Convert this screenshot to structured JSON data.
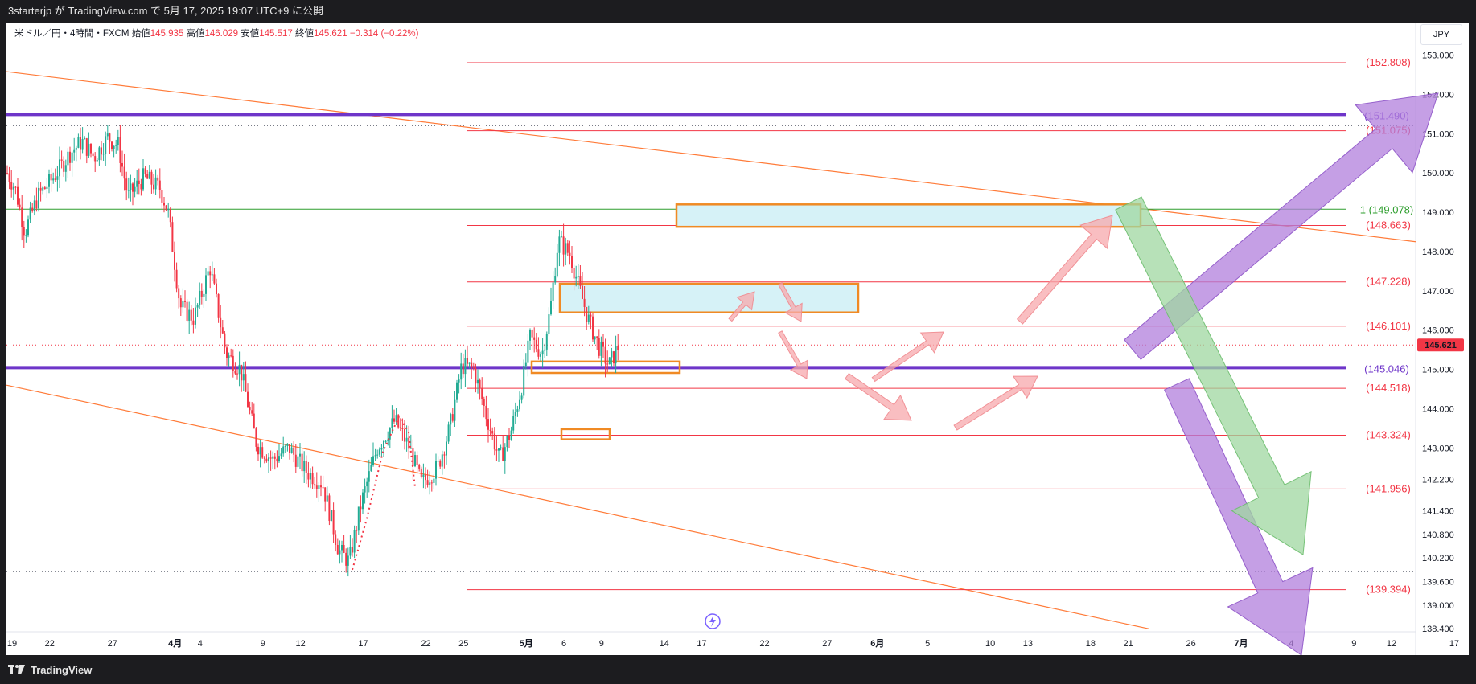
{
  "header": {
    "title": "3starterjp が TradingView.com で 5月 17, 2025 19:07 UTC+9 に公開"
  },
  "legend": {
    "symbol": "米ドル／円・4時間・FXCM",
    "open_label": "始値",
    "open": "145.935",
    "high_label": "高値",
    "high": "146.029",
    "low_label": "安値",
    "low": "145.517",
    "close_label": "終値",
    "close": "145.621",
    "change": "−0.314 (−0.22%)"
  },
  "currency_button": "JPY",
  "footer": {
    "brand": "TradingView",
    "logo_icon": "tradingview-logo-icon"
  },
  "colors": {
    "red_level": "#f23645",
    "purple_level": "#6e35c9",
    "green_level": "#2e9e2e",
    "trendline": "#ff7b39",
    "zone_fill": "#d6f2f7",
    "zone_border": "#f08a24",
    "up_candle": "#22ab94",
    "down_candle": "#f23645",
    "pink_arrow": "#f7a8ac",
    "purple_arrow": "#b27fdc",
    "green_arrow": "#9fd7a0"
  },
  "chart_data": {
    "type": "candlestick",
    "symbol": "USDJPY",
    "timeframe": "4h",
    "ylim": [
      138.2,
      153.4
    ],
    "y_ticks": [
      "153.000",
      "152.000",
      "151.000",
      "150.000",
      "149.000",
      "148.000",
      "147.000",
      "146.000",
      "145.000",
      "144.000",
      "143.000",
      "142.200",
      "141.400",
      "140.800",
      "140.200",
      "139.600",
      "139.000",
      "138.400"
    ],
    "x_ticks": [
      "19",
      "22",
      "27",
      "4月",
      "4",
      "9",
      "12",
      "17",
      "22",
      "25",
      "5月",
      "6",
      "9",
      "14",
      "17",
      "22",
      "27",
      "6月",
      "5",
      "10",
      "13",
      "18",
      "21",
      "26",
      "7月",
      "4",
      "9",
      "12",
      "17"
    ],
    "last_price": "145.621",
    "levels": [
      {
        "label": "(152.808)",
        "value": 152.808,
        "style": "red"
      },
      {
        "label": "(151.490)",
        "value": 151.49,
        "style": "purple"
      },
      {
        "label": "(151.075)",
        "value": 151.075,
        "style": "red"
      },
      {
        "label": "1 (149.078)",
        "value": 149.078,
        "style": "green"
      },
      {
        "label": "(148.663)",
        "value": 148.663,
        "style": "red"
      },
      {
        "label": "(147.228)",
        "value": 147.228,
        "style": "red"
      },
      {
        "label": "(146.101)",
        "value": 146.101,
        "style": "red"
      },
      {
        "label": "(145.046)",
        "value": 145.046,
        "style": "purple"
      },
      {
        "label": "(144.518)",
        "value": 144.518,
        "style": "red"
      },
      {
        "label": "(143.324)",
        "value": 143.324,
        "style": "red"
      },
      {
        "label": "(141.956)",
        "value": 141.956,
        "style": "red"
      },
      {
        "label": "(139.394)",
        "value": 139.394,
        "style": "red"
      }
    ],
    "dotted_levels": [
      151.2,
      145.62,
      139.85
    ],
    "price_path": [
      {
        "t": 0,
        "v": 150.0
      },
      {
        "t": 10,
        "v": 149.6
      },
      {
        "t": 22,
        "v": 148.5
      },
      {
        "t": 38,
        "v": 149.4
      },
      {
        "t": 58,
        "v": 149.9
      },
      {
        "t": 78,
        "v": 150.5
      },
      {
        "t": 93,
        "v": 150.8
      },
      {
        "t": 108,
        "v": 150.4
      },
      {
        "t": 125,
        "v": 150.9
      },
      {
        "t": 138,
        "v": 150.7
      },
      {
        "t": 150,
        "v": 149.4
      },
      {
        "t": 170,
        "v": 149.9
      },
      {
        "t": 190,
        "v": 149.6
      },
      {
        "t": 200,
        "v": 149.0
      },
      {
        "t": 215,
        "v": 146.6
      },
      {
        "t": 232,
        "v": 146.3
      },
      {
        "t": 252,
        "v": 147.6
      },
      {
        "t": 272,
        "v": 145.4
      },
      {
        "t": 290,
        "v": 145.0
      },
      {
        "t": 310,
        "v": 143.1
      },
      {
        "t": 330,
        "v": 142.7
      },
      {
        "t": 350,
        "v": 143.0
      },
      {
        "t": 372,
        "v": 142.4
      },
      {
        "t": 392,
        "v": 142.1
      },
      {
        "t": 412,
        "v": 140.4
      },
      {
        "t": 425,
        "v": 140.1
      },
      {
        "t": 440,
        "v": 141.6
      },
      {
        "t": 460,
        "v": 143.0
      },
      {
        "t": 482,
        "v": 143.7
      },
      {
        "t": 500,
        "v": 143.0
      },
      {
        "t": 515,
        "v": 142.1
      },
      {
        "t": 535,
        "v": 142.5
      },
      {
        "t": 550,
        "v": 143.5
      },
      {
        "t": 565,
        "v": 145.1
      },
      {
        "t": 580,
        "v": 145.0
      },
      {
        "t": 596,
        "v": 143.8
      },
      {
        "t": 612,
        "v": 142.7
      },
      {
        "t": 626,
        "v": 143.4
      },
      {
        "t": 640,
        "v": 144.6
      },
      {
        "t": 650,
        "v": 145.8
      },
      {
        "t": 665,
        "v": 145.4
      },
      {
        "t": 675,
        "v": 146.5
      },
      {
        "t": 685,
        "v": 148.3
      },
      {
        "t": 700,
        "v": 147.9
      },
      {
        "t": 712,
        "v": 147.0
      },
      {
        "t": 722,
        "v": 146.3
      },
      {
        "t": 735,
        "v": 145.6
      },
      {
        "t": 748,
        "v": 145.1
      },
      {
        "t": 760,
        "v": 145.6
      }
    ]
  }
}
